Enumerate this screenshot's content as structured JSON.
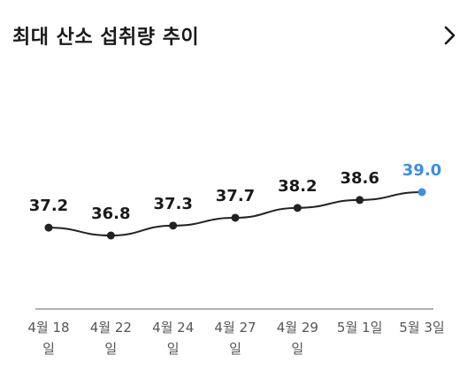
{
  "header": {
    "title": "최대 산소 섭취량 추이",
    "chevron_icon": "chevron-right-icon"
  },
  "colors": {
    "line": "#222222",
    "point": "#222222",
    "highlight": "#3a8ee6",
    "axis": "#999999",
    "text": "#1a1a1a",
    "tick_text": "#555555"
  },
  "chart_data": {
    "type": "line",
    "categories": [
      [
        "4월 18",
        "일"
      ],
      [
        "4월 22",
        "일"
      ],
      [
        "4월 24",
        "일"
      ],
      [
        "4월 27",
        "일"
      ],
      [
        "4월 29",
        "일"
      ],
      [
        "5월 1일"
      ],
      [
        "5월 3일"
      ]
    ],
    "values": [
      37.2,
      36.8,
      37.3,
      37.7,
      38.2,
      38.6,
      39.0
    ],
    "value_labels": [
      "37.2",
      "36.8",
      "37.3",
      "37.7",
      "38.2",
      "38.6",
      "39.0"
    ],
    "highlight_index": 6,
    "title": "",
    "xlabel": "",
    "ylabel": "",
    "grid": false,
    "legend": "none"
  }
}
